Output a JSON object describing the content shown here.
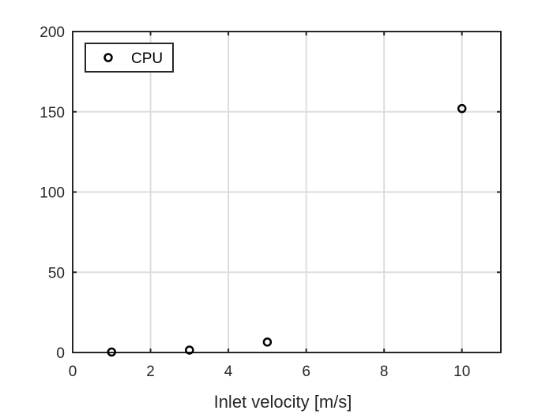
{
  "chart_data": {
    "type": "scatter",
    "title": "",
    "xlabel": "Inlet velocity [m/s]",
    "ylabel": "",
    "xlim": [
      0,
      11
    ],
    "ylim": [
      0,
      200
    ],
    "xticks": [
      0,
      2,
      4,
      6,
      8,
      10
    ],
    "yticks": [
      0,
      50,
      100,
      150,
      200
    ],
    "xtick_labels": [
      "0",
      "2",
      "4",
      "6",
      "8",
      "10"
    ],
    "ytick_labels": [
      "0",
      "50",
      "100",
      "150",
      "200"
    ],
    "grid": true,
    "legend_position": "top-left",
    "series": [
      {
        "name": "CPU",
        "marker": "circle-open",
        "color": "#000000",
        "points": [
          {
            "x": 1,
            "y": 0.3
          },
          {
            "x": 3,
            "y": 1.5
          },
          {
            "x": 5,
            "y": 6.5
          },
          {
            "x": 10,
            "y": 152
          }
        ]
      }
    ]
  }
}
